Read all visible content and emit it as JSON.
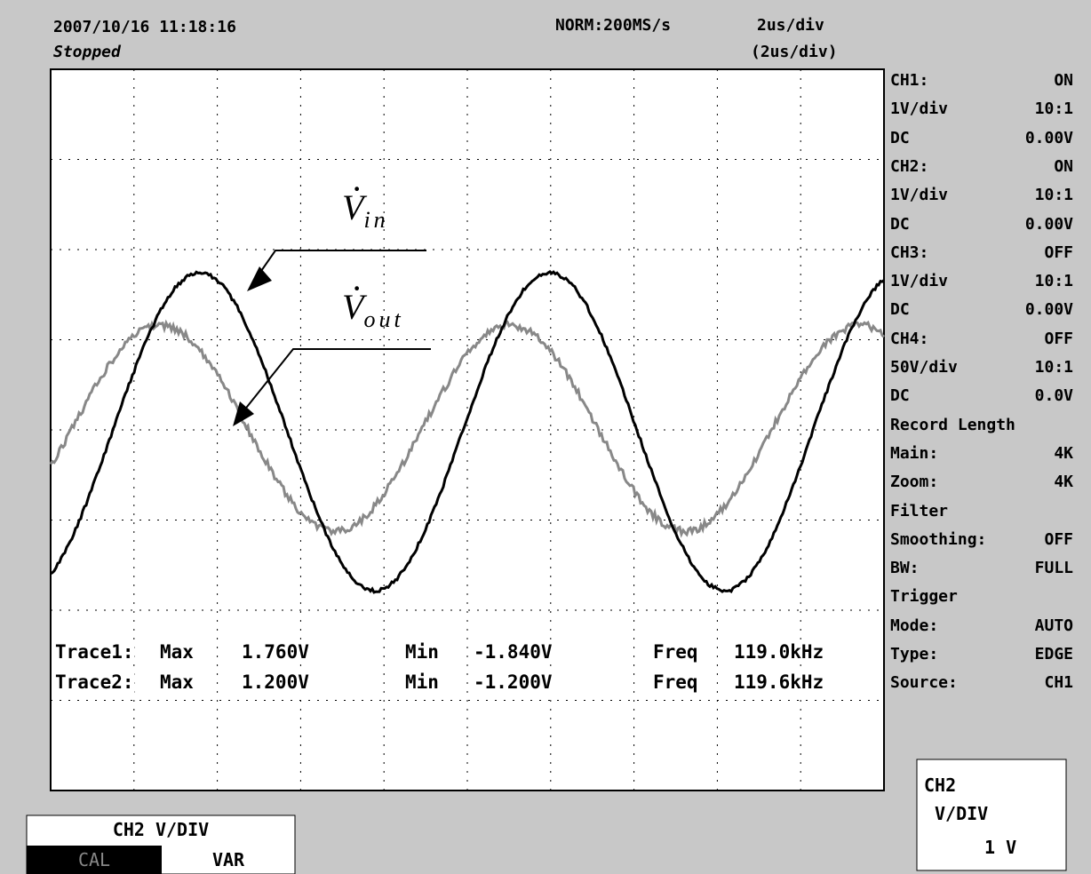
{
  "header": {
    "timestamp": "2007/10/16 11:18:16",
    "status": "Stopped",
    "sample_rate": "NORM:200MS/s",
    "timebase": "2us/div",
    "zoom_timebase": "(2us/div)"
  },
  "side_panel": [
    [
      "CH1:",
      "ON"
    ],
    [
      "1V/div",
      "10:1"
    ],
    [
      "DC",
      "0.00V"
    ],
    [
      "CH2:",
      "ON"
    ],
    [
      "1V/div",
      "10:1"
    ],
    [
      "DC",
      "0.00V"
    ],
    [
      "CH3:",
      "OFF"
    ],
    [
      "1V/div",
      "10:1"
    ],
    [
      "DC",
      "0.00V"
    ],
    [
      "CH4:",
      "OFF"
    ],
    [
      "50V/div",
      "10:1"
    ],
    [
      "DC",
      "0.0V"
    ],
    [
      "Record Length",
      ""
    ],
    [
      "Main:",
      "4K"
    ],
    [
      "Zoom:",
      "4K"
    ],
    [
      "Filter",
      ""
    ],
    [
      "Smoothing:",
      "OFF"
    ],
    [
      "BW:",
      "FULL"
    ],
    [
      "Trigger",
      ""
    ],
    [
      "Mode:",
      "AUTO"
    ],
    [
      "Type:",
      "EDGE"
    ],
    [
      "Source:",
      "CH1"
    ]
  ],
  "measurements": [
    [
      "Trace1:",
      "Max",
      "1.760V",
      "Min",
      "-1.840V",
      "Freq",
      "119.0kHz"
    ],
    [
      "Trace2:",
      "Max",
      "1.200V",
      "Min",
      "-1.200V",
      "Freq",
      "119.6kHz"
    ]
  ],
  "annotations": {
    "vin": {
      "symbol": "V",
      "subscript": "in"
    },
    "vout": {
      "symbol": "V",
      "subscript": "out"
    }
  },
  "menu": {
    "title": "CH2 V/DIV",
    "options": [
      "CAL",
      "VAR"
    ]
  },
  "setting_box": [
    "CH2",
    "V/DIV",
    "1 V"
  ]
}
